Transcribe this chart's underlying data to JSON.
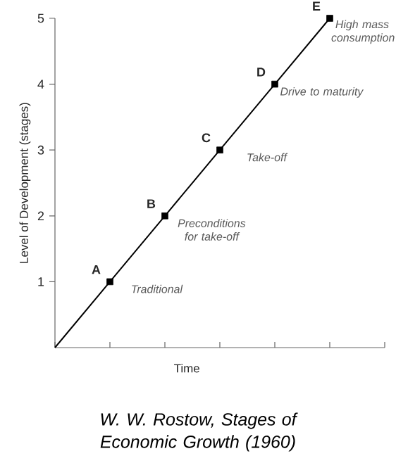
{
  "chart_data": {
    "type": "line",
    "xlabel": "Time",
    "ylabel": "Level of Development (stages)",
    "categories": [
      null,
      null,
      null,
      null,
      null,
      null,
      null
    ],
    "ylim": [
      0,
      5
    ],
    "yticks": [
      1,
      2,
      3,
      4,
      5
    ],
    "tick_labels": "y",
    "series": [
      {
        "color": "#000000",
        "marker": "none",
        "values": [
          0,
          1,
          2,
          3,
          4,
          5,
          null
        ]
      },
      {
        "type": "scatter",
        "color": "#000000",
        "marker": "square",
        "values": [
          null,
          1,
          2,
          3,
          4,
          5,
          null
        ]
      }
    ],
    "annotations": [
      "A",
      "Traditional",
      "B",
      "Preconditions for take-off",
      "C",
      "Take-off",
      "D",
      "Drive to maturity",
      "E",
      "High mass consumption",
      "W. W. Rostow, Stages of Economic Growth (1960)"
    ]
  }
}
